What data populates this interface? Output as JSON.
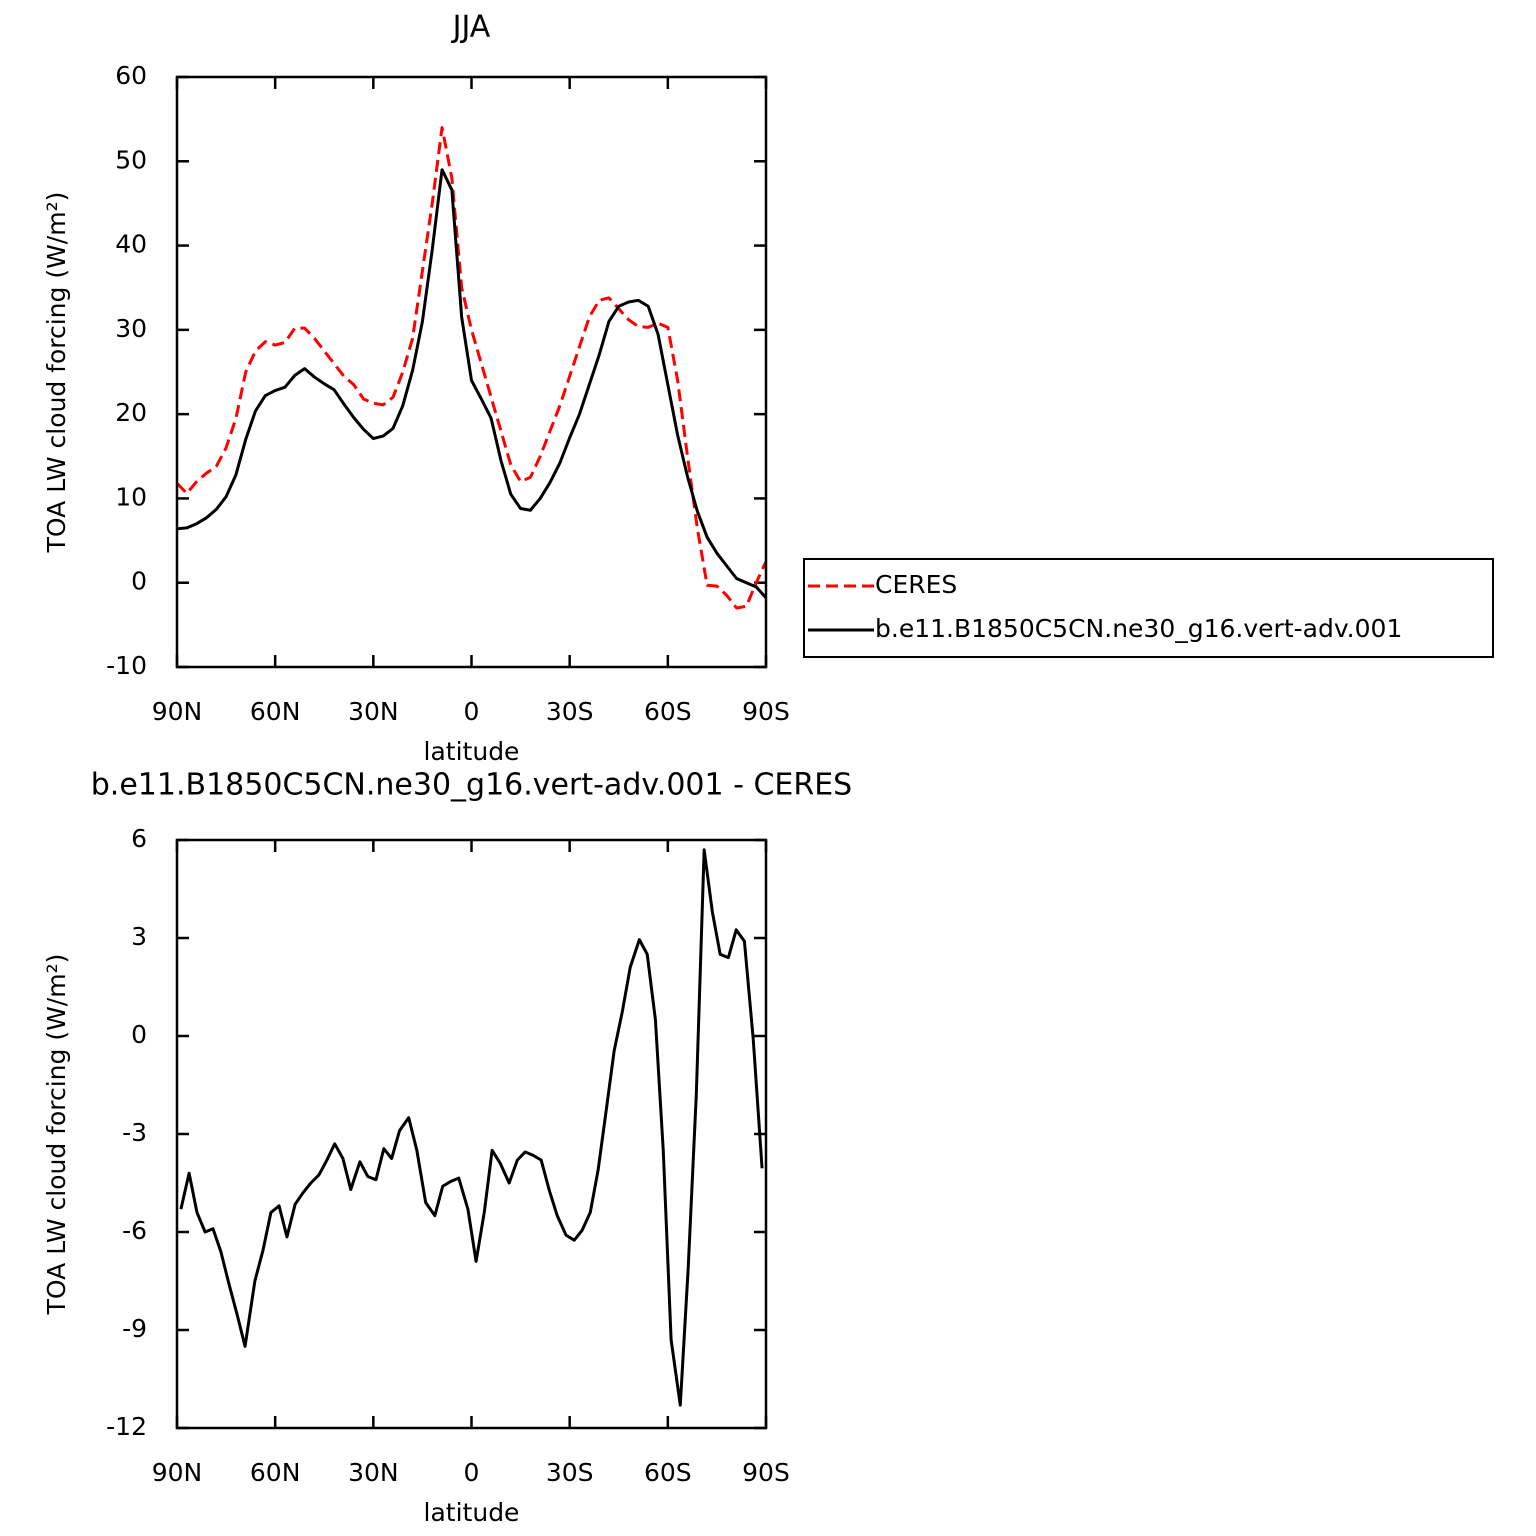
{
  "chart_data": [
    {
      "type": "line",
      "title": "JJA",
      "x_label": "latitude",
      "y_label": "TOA LW cloud forcing (W/m²)",
      "x": [
        90,
        87,
        84,
        81,
        78,
        75,
        72,
        69,
        66,
        63,
        60,
        57,
        54,
        51,
        48,
        45,
        42,
        39,
        36,
        33,
        30,
        27,
        24,
        21,
        18,
        15,
        12,
        9,
        6,
        3,
        0,
        -3,
        -6,
        -9,
        -12,
        -15,
        -18,
        -21,
        -24,
        -27,
        -30,
        -33,
        -36,
        -39,
        -42,
        -45,
        -48,
        -51,
        -54,
        -57,
        -60,
        -63,
        -66,
        -69,
        -72,
        -75,
        -78,
        -81,
        -84,
        -87,
        -90
      ],
      "series": [
        {
          "name": "CERES",
          "color": "#ff0000",
          "line_style": "dashed",
          "values": [
            11.8,
            10.6,
            12.0,
            13.0,
            13.8,
            16.0,
            19.5,
            25.0,
            27.5,
            28.6,
            28.2,
            28.5,
            30.2,
            30.2,
            29.0,
            27.5,
            26.0,
            24.5,
            23.5,
            21.8,
            21.3,
            21.1,
            22.0,
            25.0,
            29.0,
            37.0,
            45.0,
            54.0,
            48.0,
            35.0,
            30.0,
            26.0,
            22.0,
            18.0,
            14.0,
            12.0,
            12.5,
            15.0,
            18.0,
            21.0,
            24.5,
            28.0,
            31.5,
            33.5,
            33.8,
            32.5,
            31.2,
            30.4,
            30.3,
            30.8,
            30.3,
            24.0,
            15.0,
            6.5,
            -0.3,
            -0.4,
            -1.5,
            -3.0,
            -2.8,
            0.0,
            2.5
          ]
        },
        {
          "name": "b.e11.B1850C5CN.ne30_g16.vert-adv.001",
          "color": "#000000",
          "line_style": "solid",
          "values": [
            6.4,
            6.5,
            7.0,
            7.7,
            8.7,
            10.2,
            12.8,
            17.0,
            20.4,
            22.2,
            22.8,
            23.2,
            24.6,
            25.4,
            24.4,
            23.6,
            22.9,
            21.2,
            19.6,
            18.2,
            17.1,
            17.4,
            18.3,
            21.0,
            25.2,
            31.0,
            39.5,
            49.0,
            46.6,
            31.5,
            24.0,
            21.8,
            19.5,
            14.5,
            10.5,
            8.8,
            8.6,
            10.0,
            11.9,
            14.2,
            17.2,
            20.0,
            23.5,
            27.0,
            31.0,
            32.8,
            33.3,
            33.5,
            32.8,
            29.5,
            23.5,
            17.5,
            12.6,
            8.5,
            5.4,
            3.5,
            2.0,
            0.5,
            0.0,
            -0.5,
            -1.8
          ]
        }
      ],
      "xlim": [
        90,
        -90
      ],
      "xticks": [
        {
          "value": 90,
          "label": "90N"
        },
        {
          "value": 60,
          "label": "60N"
        },
        {
          "value": 30,
          "label": "30N"
        },
        0,
        {
          "value": -30,
          "label": "30S"
        },
        {
          "value": -60,
          "label": "60S"
        },
        {
          "value": -90,
          "label": "90S"
        }
      ],
      "ylim": [
        -10,
        60
      ],
      "yticks": [
        -10,
        0,
        10,
        20,
        30,
        40,
        50,
        60
      ],
      "legend": "right"
    },
    {
      "type": "line",
      "title": "b.e11.B1850C5CN.ne30_g16.vert-adv.001 - CERES",
      "x_label": "latitude",
      "y_label": "TOA LW cloud forcing (W/m²)",
      "x": [
        88.8,
        86.3,
        83.9,
        81.4,
        79.0,
        76.6,
        74.1,
        71.7,
        69.2,
        66.2,
        63.7,
        61.3,
        58.8,
        56.4,
        53.9,
        51.5,
        49.1,
        46.6,
        44.2,
        41.8,
        39.3,
        36.9,
        34.1,
        31.7,
        29.2,
        26.8,
        24.4,
        22.0,
        19.2,
        16.7,
        14.0,
        11.2,
        8.8,
        6.3,
        3.9,
        1.1,
        -1.4,
        -3.9,
        -6.3,
        -8.8,
        -11.5,
        -14.0,
        -16.4,
        -18.8,
        -21.3,
        -23.7,
        -26.2,
        -28.9,
        -31.4,
        -33.8,
        -36.3,
        -38.7,
        -41.2,
        -43.6,
        -46.1,
        -48.5,
        -51.3,
        -53.7,
        -56.2,
        -58.6,
        -61.0,
        -63.8,
        -66.2,
        -68.7,
        -71.1,
        -73.6,
        -76.0,
        -78.5,
        -80.9,
        -83.4,
        -86.1,
        -88.8
      ],
      "series": [
        {
          "name": "b.e11.B1850C5CN.ne30_g16.vert-adv.001 - CERES",
          "color": "#000000",
          "line_style": "solid",
          "values": [
            -5.3,
            -4.2,
            -5.4,
            -6.0,
            -5.9,
            -6.6,
            -7.6,
            -8.5,
            -9.5,
            -7.5,
            -6.55,
            -5.4,
            -5.2,
            -6.15,
            -5.15,
            -4.8,
            -4.5,
            -4.25,
            -3.8,
            -3.3,
            -3.75,
            -4.7,
            -3.85,
            -4.3,
            -4.4,
            -3.45,
            -3.75,
            -2.9,
            -2.5,
            -3.5,
            -5.1,
            -5.5,
            -4.6,
            -4.45,
            -4.35,
            -5.3,
            -6.9,
            -5.4,
            -3.5,
            -3.9,
            -4.5,
            -3.8,
            -3.55,
            -3.65,
            -3.8,
            -4.7,
            -5.5,
            -6.1,
            -6.25,
            -5.95,
            -5.4,
            -4.1,
            -2.25,
            -0.45,
            0.75,
            2.1,
            2.95,
            2.5,
            0.5,
            -3.5,
            -9.3,
            -11.3,
            -7.15,
            -1.8,
            5.7,
            3.8,
            2.5,
            2.4,
            3.25,
            2.9,
            -0.1,
            -4.05
          ]
        }
      ],
      "xlim": [
        90,
        -90
      ],
      "xticks": [
        {
          "value": 90,
          "label": "90N"
        },
        {
          "value": 60,
          "label": "60N"
        },
        {
          "value": 30,
          "label": "30N"
        },
        0,
        {
          "value": -30,
          "label": "30S"
        },
        {
          "value": -60,
          "label": "60S"
        },
        {
          "value": -90,
          "label": "90S"
        }
      ],
      "ylim": [
        -12,
        6
      ],
      "yticks": [
        -12,
        -9,
        -6,
        -3,
        0,
        3,
        6
      ]
    }
  ]
}
